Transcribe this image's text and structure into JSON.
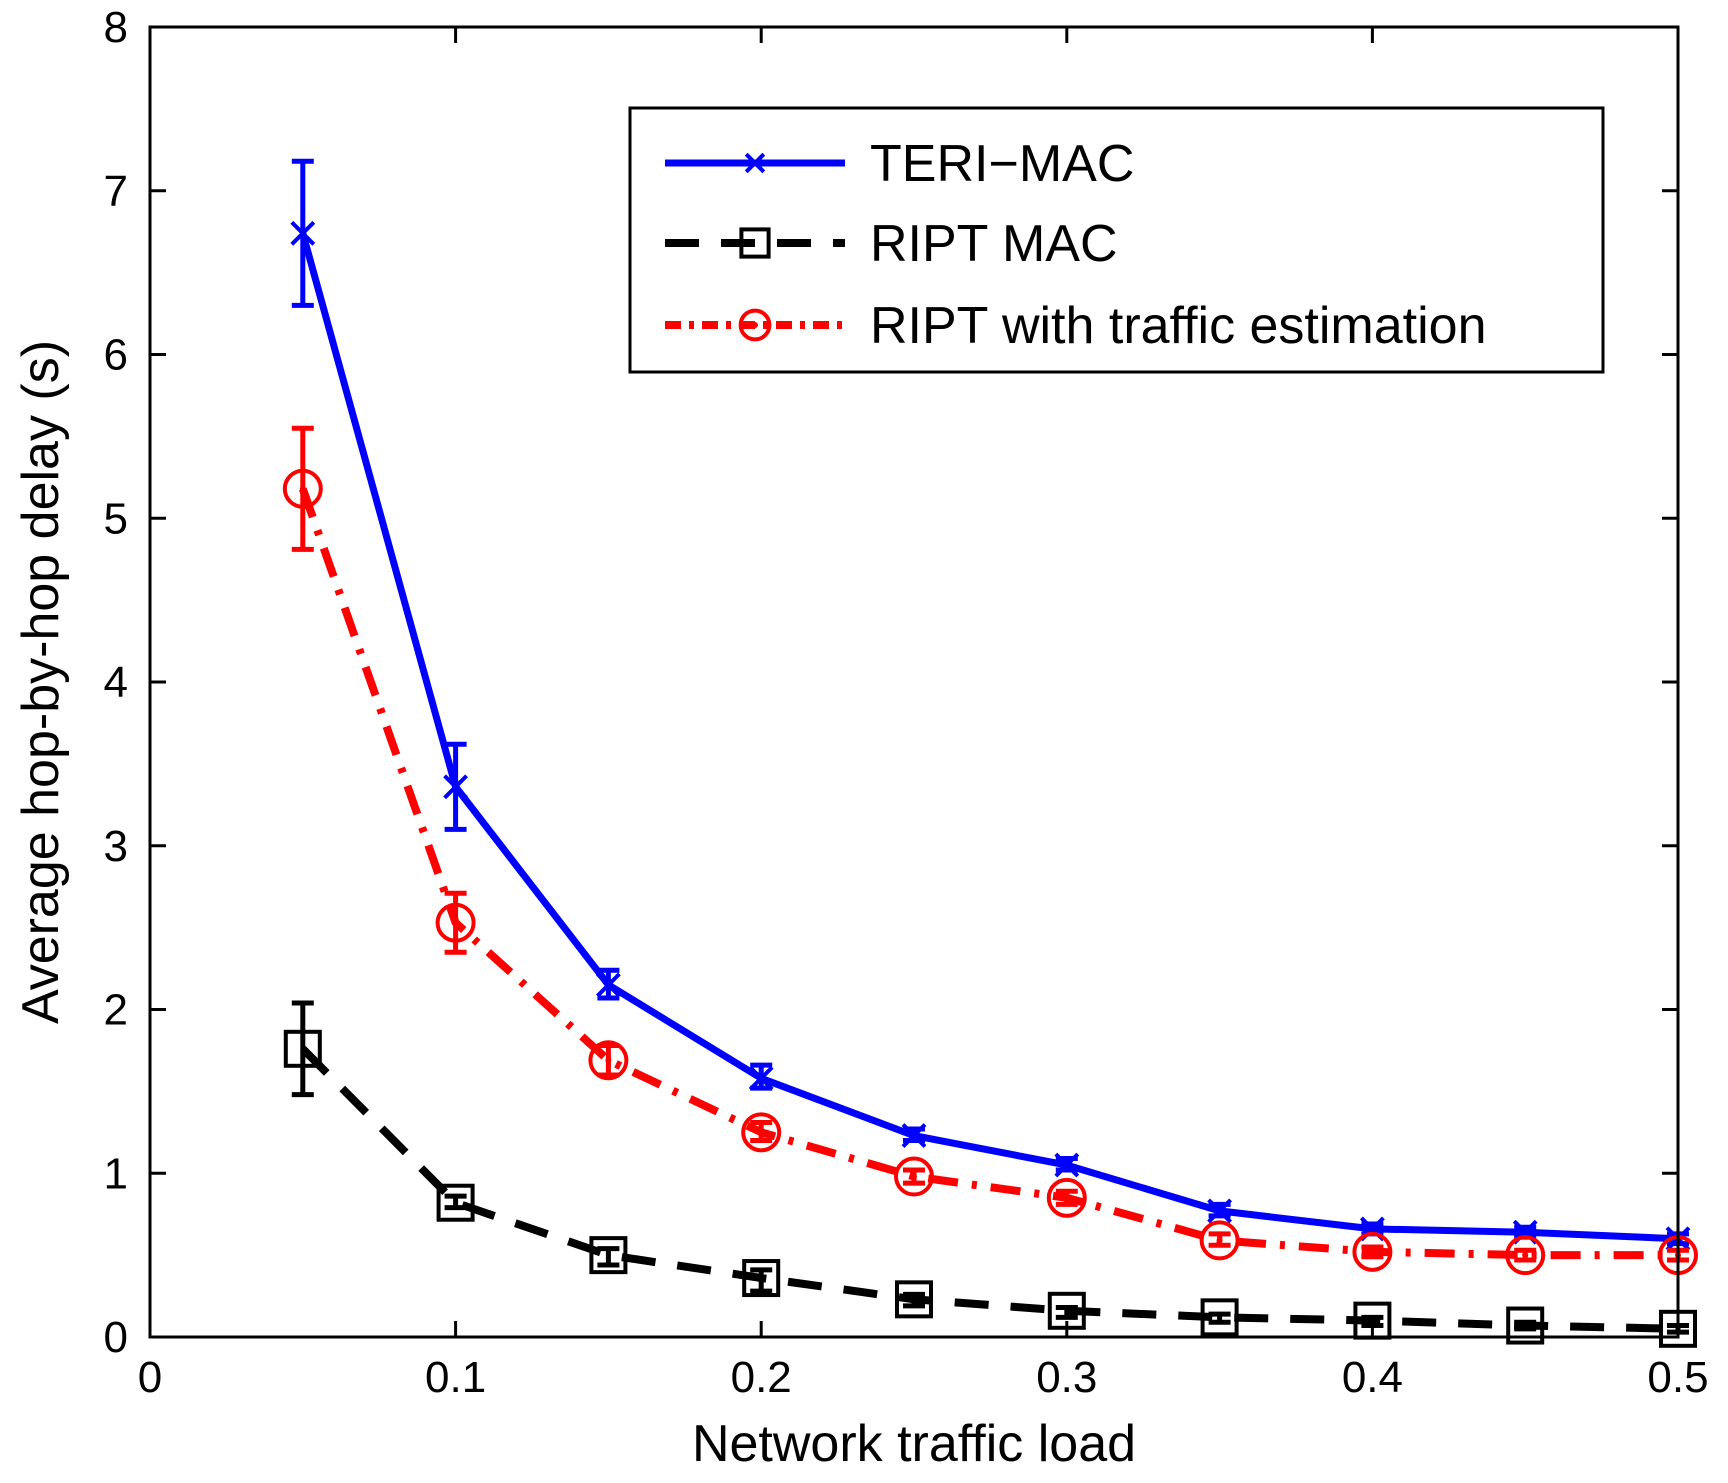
{
  "chart_data": {
    "type": "line",
    "title": "",
    "xlabel": "Network traffic load",
    "ylabel": "Average hop-by-hop delay (s)",
    "xlim": [
      0,
      0.5
    ],
    "ylim": [
      0,
      8
    ],
    "xticks": [
      0,
      0.1,
      0.2,
      0.3,
      0.4,
      0.5
    ],
    "xtick_labels": [
      "0",
      "0.1",
      "0.2",
      "0.3",
      "0.4",
      "0.5"
    ],
    "yticks": [
      0,
      1,
      2,
      3,
      4,
      5,
      6,
      7,
      8
    ],
    "ytick_labels": [
      "0",
      "1",
      "2",
      "3",
      "4",
      "5",
      "6",
      "7",
      "8"
    ],
    "grid": false,
    "legend_position": "top-right",
    "x": [
      0.05,
      0.1,
      0.15,
      0.2,
      0.25,
      0.3,
      0.35,
      0.4,
      0.45,
      0.5
    ],
    "series": [
      {
        "name": "TERI−MAC",
        "color": "#0000ff",
        "line_style": "solid",
        "marker": "x",
        "values": [
          6.74,
          3.36,
          2.15,
          1.58,
          1.23,
          1.05,
          0.77,
          0.66,
          0.64,
          0.6
        ],
        "err_low": [
          6.3,
          3.1,
          2.07,
          1.52,
          1.2,
          1.02,
          0.74,
          0.63,
          0.61,
          0.57
        ],
        "err_high": [
          7.18,
          3.62,
          2.24,
          1.66,
          1.27,
          1.09,
          0.81,
          0.69,
          0.67,
          0.63
        ]
      },
      {
        "name": "RIPT MAC",
        "color": "#000000",
        "line_style": "dashed",
        "marker": "square",
        "values": [
          1.76,
          0.82,
          0.5,
          0.36,
          0.23,
          0.16,
          0.12,
          0.1,
          0.07,
          0.05
        ],
        "err_low": [
          1.48,
          0.79,
          0.44,
          0.28,
          0.19,
          0.12,
          0.09,
          0.07,
          0.05,
          0.03
        ],
        "err_high": [
          2.04,
          0.86,
          0.54,
          0.41,
          0.26,
          0.18,
          0.14,
          0.12,
          0.09,
          0.07
        ]
      },
      {
        "name": "RIPT with traffic estimation",
        "color": "#ff0000",
        "line_style": "dashdot",
        "marker": "circle",
        "values": [
          5.18,
          2.53,
          1.69,
          1.25,
          0.98,
          0.85,
          0.59,
          0.52,
          0.5,
          0.5
        ],
        "err_low": [
          4.81,
          2.35,
          1.6,
          1.2,
          0.94,
          0.81,
          0.56,
          0.49,
          0.47,
          0.47
        ],
        "err_high": [
          5.55,
          2.71,
          1.78,
          1.31,
          1.02,
          0.89,
          0.63,
          0.55,
          0.53,
          0.53
        ]
      }
    ]
  }
}
